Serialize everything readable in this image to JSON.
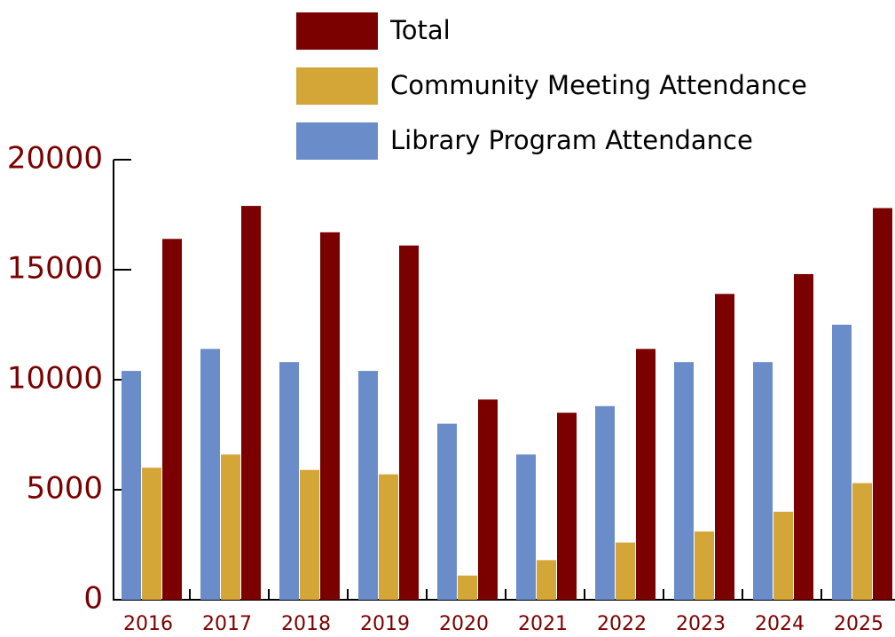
{
  "chart_data": {
    "type": "bar",
    "categories": [
      "2016",
      "2017",
      "2018",
      "2019",
      "2020",
      "2021",
      "2022",
      "2023",
      "2024",
      "2025"
    ],
    "series": [
      {
        "name": "Library Program Attendance",
        "color": "#6a8cc9",
        "values": [
          10400,
          11400,
          10800,
          10400,
          8000,
          6600,
          8800,
          10800,
          10800,
          12500
        ]
      },
      {
        "name": "Community Meeting Attendance",
        "color": "#d4a537",
        "values": [
          6000,
          6600,
          5900,
          5700,
          1100,
          1800,
          2600,
          3100,
          4000,
          5300
        ]
      },
      {
        "name": "Total",
        "color": "#7b0000",
        "values": [
          16400,
          17900,
          16700,
          16100,
          9100,
          8500,
          11400,
          13900,
          14800,
          17800
        ]
      }
    ],
    "ylim": [
      0,
      20000
    ],
    "yticks": [
      0,
      5000,
      10000,
      15000,
      20000
    ]
  }
}
